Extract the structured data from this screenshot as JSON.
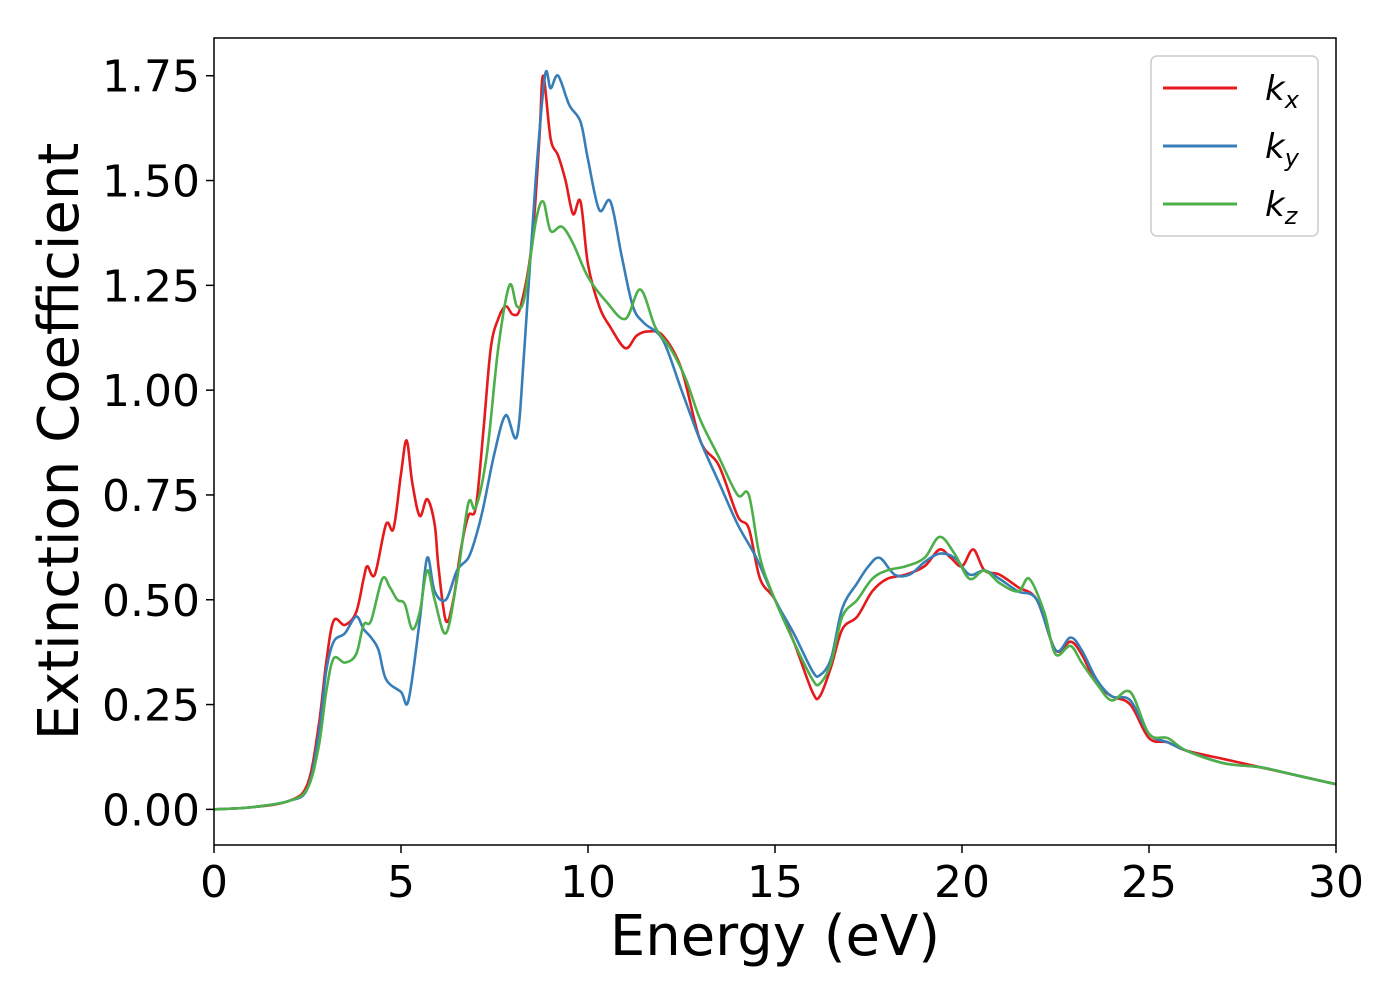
{
  "chart_data": {
    "type": "line",
    "title": "",
    "xlabel": "Energy (eV)",
    "ylabel": "Extinction Coefficient",
    "xlim": [
      0,
      30
    ],
    "ylim": [
      -0.085,
      1.84
    ],
    "xticks": [
      0,
      5,
      10,
      15,
      20,
      25,
      30
    ],
    "xtick_labels": [
      "0",
      "5",
      "10",
      "15",
      "20",
      "25",
      "30"
    ],
    "yticks": [
      0,
      0.25,
      0.5,
      0.75,
      1.0,
      1.25,
      1.5,
      1.75
    ],
    "ytick_labels": [
      "0.00",
      "0.25",
      "0.50",
      "0.75",
      "1.00",
      "1.25",
      "1.50",
      "1.75"
    ],
    "grid": false,
    "legend_position": "top-right",
    "series": [
      {
        "name": "k_x",
        "legend_main": "k",
        "legend_sub": "x",
        "color": "#e41a1c",
        "points": [
          [
            0,
            0.0
          ],
          [
            1,
            0.005
          ],
          [
            2,
            0.02
          ],
          [
            2.5,
            0.06
          ],
          [
            2.8,
            0.2
          ],
          [
            3.0,
            0.35
          ],
          [
            3.2,
            0.45
          ],
          [
            3.5,
            0.44
          ],
          [
            3.8,
            0.47
          ],
          [
            4.0,
            0.55
          ],
          [
            4.1,
            0.58
          ],
          [
            4.3,
            0.56
          ],
          [
            4.6,
            0.68
          ],
          [
            4.8,
            0.67
          ],
          [
            5.0,
            0.8
          ],
          [
            5.15,
            0.88
          ],
          [
            5.3,
            0.78
          ],
          [
            5.5,
            0.7
          ],
          [
            5.7,
            0.74
          ],
          [
            5.9,
            0.68
          ],
          [
            6.0,
            0.58
          ],
          [
            6.2,
            0.45
          ],
          [
            6.4,
            0.5
          ],
          [
            6.6,
            0.62
          ],
          [
            6.8,
            0.7
          ],
          [
            7.0,
            0.72
          ],
          [
            7.2,
            0.9
          ],
          [
            7.4,
            1.1
          ],
          [
            7.6,
            1.17
          ],
          [
            7.8,
            1.2
          ],
          [
            8.0,
            1.18
          ],
          [
            8.2,
            1.2
          ],
          [
            8.5,
            1.35
          ],
          [
            8.7,
            1.6
          ],
          [
            8.8,
            1.75
          ],
          [
            9.0,
            1.6
          ],
          [
            9.2,
            1.56
          ],
          [
            9.4,
            1.5
          ],
          [
            9.6,
            1.42
          ],
          [
            9.8,
            1.45
          ],
          [
            10.0,
            1.3
          ],
          [
            10.3,
            1.2
          ],
          [
            10.6,
            1.15
          ],
          [
            11.0,
            1.1
          ],
          [
            11.3,
            1.13
          ],
          [
            11.6,
            1.14
          ],
          [
            12.0,
            1.13
          ],
          [
            12.5,
            1.05
          ],
          [
            13.0,
            0.88
          ],
          [
            13.5,
            0.82
          ],
          [
            14.0,
            0.7
          ],
          [
            14.3,
            0.67
          ],
          [
            14.6,
            0.55
          ],
          [
            15.0,
            0.5
          ],
          [
            15.5,
            0.4
          ],
          [
            16.0,
            0.28
          ],
          [
            16.2,
            0.27
          ],
          [
            16.5,
            0.34
          ],
          [
            16.8,
            0.43
          ],
          [
            17.2,
            0.46
          ],
          [
            17.6,
            0.52
          ],
          [
            18.0,
            0.55
          ],
          [
            18.5,
            0.56
          ],
          [
            19.0,
            0.58
          ],
          [
            19.4,
            0.62
          ],
          [
            19.7,
            0.6
          ],
          [
            20.0,
            0.58
          ],
          [
            20.3,
            0.62
          ],
          [
            20.6,
            0.57
          ],
          [
            21.0,
            0.56
          ],
          [
            21.5,
            0.53
          ],
          [
            22.0,
            0.5
          ],
          [
            22.5,
            0.38
          ],
          [
            22.9,
            0.4
          ],
          [
            23.2,
            0.37
          ],
          [
            23.6,
            0.3
          ],
          [
            24.0,
            0.27
          ],
          [
            24.5,
            0.25
          ],
          [
            25.0,
            0.17
          ],
          [
            25.5,
            0.16
          ],
          [
            26.0,
            0.14
          ],
          [
            27.0,
            0.12
          ],
          [
            28.0,
            0.1
          ],
          [
            29.0,
            0.08
          ],
          [
            30.0,
            0.06
          ]
        ]
      },
      {
        "name": "k_y",
        "legend_main": "k",
        "legend_sub": "y",
        "color": "#377eb8",
        "points": [
          [
            0,
            0.0
          ],
          [
            1,
            0.005
          ],
          [
            2,
            0.02
          ],
          [
            2.5,
            0.05
          ],
          [
            2.8,
            0.18
          ],
          [
            3.0,
            0.33
          ],
          [
            3.2,
            0.4
          ],
          [
            3.5,
            0.42
          ],
          [
            3.8,
            0.46
          ],
          [
            4.0,
            0.43
          ],
          [
            4.2,
            0.41
          ],
          [
            4.4,
            0.38
          ],
          [
            4.6,
            0.31
          ],
          [
            5.0,
            0.28
          ],
          [
            5.2,
            0.26
          ],
          [
            5.5,
            0.45
          ],
          [
            5.7,
            0.6
          ],
          [
            5.9,
            0.52
          ],
          [
            6.2,
            0.5
          ],
          [
            6.5,
            0.57
          ],
          [
            6.8,
            0.6
          ],
          [
            7.0,
            0.65
          ],
          [
            7.2,
            0.72
          ],
          [
            7.5,
            0.85
          ],
          [
            7.8,
            0.94
          ],
          [
            8.1,
            0.89
          ],
          [
            8.3,
            1.1
          ],
          [
            8.6,
            1.5
          ],
          [
            8.85,
            1.75
          ],
          [
            9.0,
            1.72
          ],
          [
            9.2,
            1.75
          ],
          [
            9.5,
            1.68
          ],
          [
            9.8,
            1.64
          ],
          [
            10.0,
            1.55
          ],
          [
            10.3,
            1.43
          ],
          [
            10.6,
            1.45
          ],
          [
            10.9,
            1.32
          ],
          [
            11.2,
            1.2
          ],
          [
            11.5,
            1.16
          ],
          [
            12.0,
            1.12
          ],
          [
            12.5,
            1.0
          ],
          [
            13.0,
            0.88
          ],
          [
            13.5,
            0.78
          ],
          [
            14.0,
            0.68
          ],
          [
            14.5,
            0.6
          ],
          [
            15.0,
            0.5
          ],
          [
            15.5,
            0.42
          ],
          [
            16.0,
            0.33
          ],
          [
            16.2,
            0.32
          ],
          [
            16.5,
            0.36
          ],
          [
            16.8,
            0.48
          ],
          [
            17.2,
            0.54
          ],
          [
            17.5,
            0.58
          ],
          [
            17.8,
            0.6
          ],
          [
            18.2,
            0.56
          ],
          [
            18.6,
            0.56
          ],
          [
            19.0,
            0.59
          ],
          [
            19.4,
            0.61
          ],
          [
            19.8,
            0.6
          ],
          [
            20.2,
            0.56
          ],
          [
            20.6,
            0.57
          ],
          [
            21.0,
            0.55
          ],
          [
            21.5,
            0.52
          ],
          [
            22.0,
            0.5
          ],
          [
            22.5,
            0.38
          ],
          [
            22.9,
            0.41
          ],
          [
            23.2,
            0.38
          ],
          [
            23.6,
            0.31
          ],
          [
            24.0,
            0.27
          ],
          [
            24.5,
            0.26
          ],
          [
            25.0,
            0.18
          ],
          [
            25.5,
            0.16
          ],
          [
            26.0,
            0.14
          ],
          [
            27.0,
            0.11
          ],
          [
            28.0,
            0.1
          ],
          [
            29.0,
            0.08
          ],
          [
            30.0,
            0.06
          ]
        ]
      },
      {
        "name": "k_z",
        "legend_main": "k",
        "legend_sub": "z",
        "color": "#4daf4a",
        "points": [
          [
            0,
            0.0
          ],
          [
            1,
            0.005
          ],
          [
            2,
            0.02
          ],
          [
            2.5,
            0.05
          ],
          [
            2.8,
            0.15
          ],
          [
            3.0,
            0.28
          ],
          [
            3.2,
            0.36
          ],
          [
            3.5,
            0.35
          ],
          [
            3.8,
            0.37
          ],
          [
            4.0,
            0.44
          ],
          [
            4.2,
            0.45
          ],
          [
            4.5,
            0.55
          ],
          [
            4.7,
            0.53
          ],
          [
            4.9,
            0.5
          ],
          [
            5.1,
            0.49
          ],
          [
            5.3,
            0.43
          ],
          [
            5.5,
            0.47
          ],
          [
            5.7,
            0.57
          ],
          [
            5.9,
            0.5
          ],
          [
            6.2,
            0.42
          ],
          [
            6.5,
            0.55
          ],
          [
            6.8,
            0.73
          ],
          [
            7.0,
            0.72
          ],
          [
            7.3,
            0.85
          ],
          [
            7.6,
            1.1
          ],
          [
            7.9,
            1.25
          ],
          [
            8.1,
            1.2
          ],
          [
            8.3,
            1.22
          ],
          [
            8.6,
            1.4
          ],
          [
            8.8,
            1.45
          ],
          [
            9.0,
            1.38
          ],
          [
            9.3,
            1.39
          ],
          [
            9.6,
            1.35
          ],
          [
            10.0,
            1.27
          ],
          [
            10.5,
            1.21
          ],
          [
            11.0,
            1.17
          ],
          [
            11.4,
            1.24
          ],
          [
            11.8,
            1.15
          ],
          [
            12.2,
            1.1
          ],
          [
            12.6,
            1.03
          ],
          [
            13.0,
            0.93
          ],
          [
            13.5,
            0.84
          ],
          [
            14.0,
            0.75
          ],
          [
            14.3,
            0.75
          ],
          [
            14.6,
            0.6
          ],
          [
            15.0,
            0.5
          ],
          [
            15.5,
            0.4
          ],
          [
            16.0,
            0.31
          ],
          [
            16.2,
            0.3
          ],
          [
            16.5,
            0.35
          ],
          [
            16.8,
            0.46
          ],
          [
            17.2,
            0.5
          ],
          [
            17.6,
            0.55
          ],
          [
            18.0,
            0.57
          ],
          [
            18.5,
            0.58
          ],
          [
            19.0,
            0.6
          ],
          [
            19.4,
            0.65
          ],
          [
            19.8,
            0.61
          ],
          [
            20.2,
            0.55
          ],
          [
            20.6,
            0.57
          ],
          [
            21.0,
            0.54
          ],
          [
            21.5,
            0.52
          ],
          [
            21.8,
            0.55
          ],
          [
            22.2,
            0.47
          ],
          [
            22.5,
            0.37
          ],
          [
            22.9,
            0.39
          ],
          [
            23.2,
            0.35
          ],
          [
            23.6,
            0.3
          ],
          [
            24.0,
            0.26
          ],
          [
            24.5,
            0.28
          ],
          [
            25.0,
            0.18
          ],
          [
            25.5,
            0.17
          ],
          [
            26.0,
            0.14
          ],
          [
            27.0,
            0.11
          ],
          [
            28.0,
            0.1
          ],
          [
            29.0,
            0.08
          ],
          [
            30.0,
            0.06
          ]
        ]
      }
    ]
  }
}
